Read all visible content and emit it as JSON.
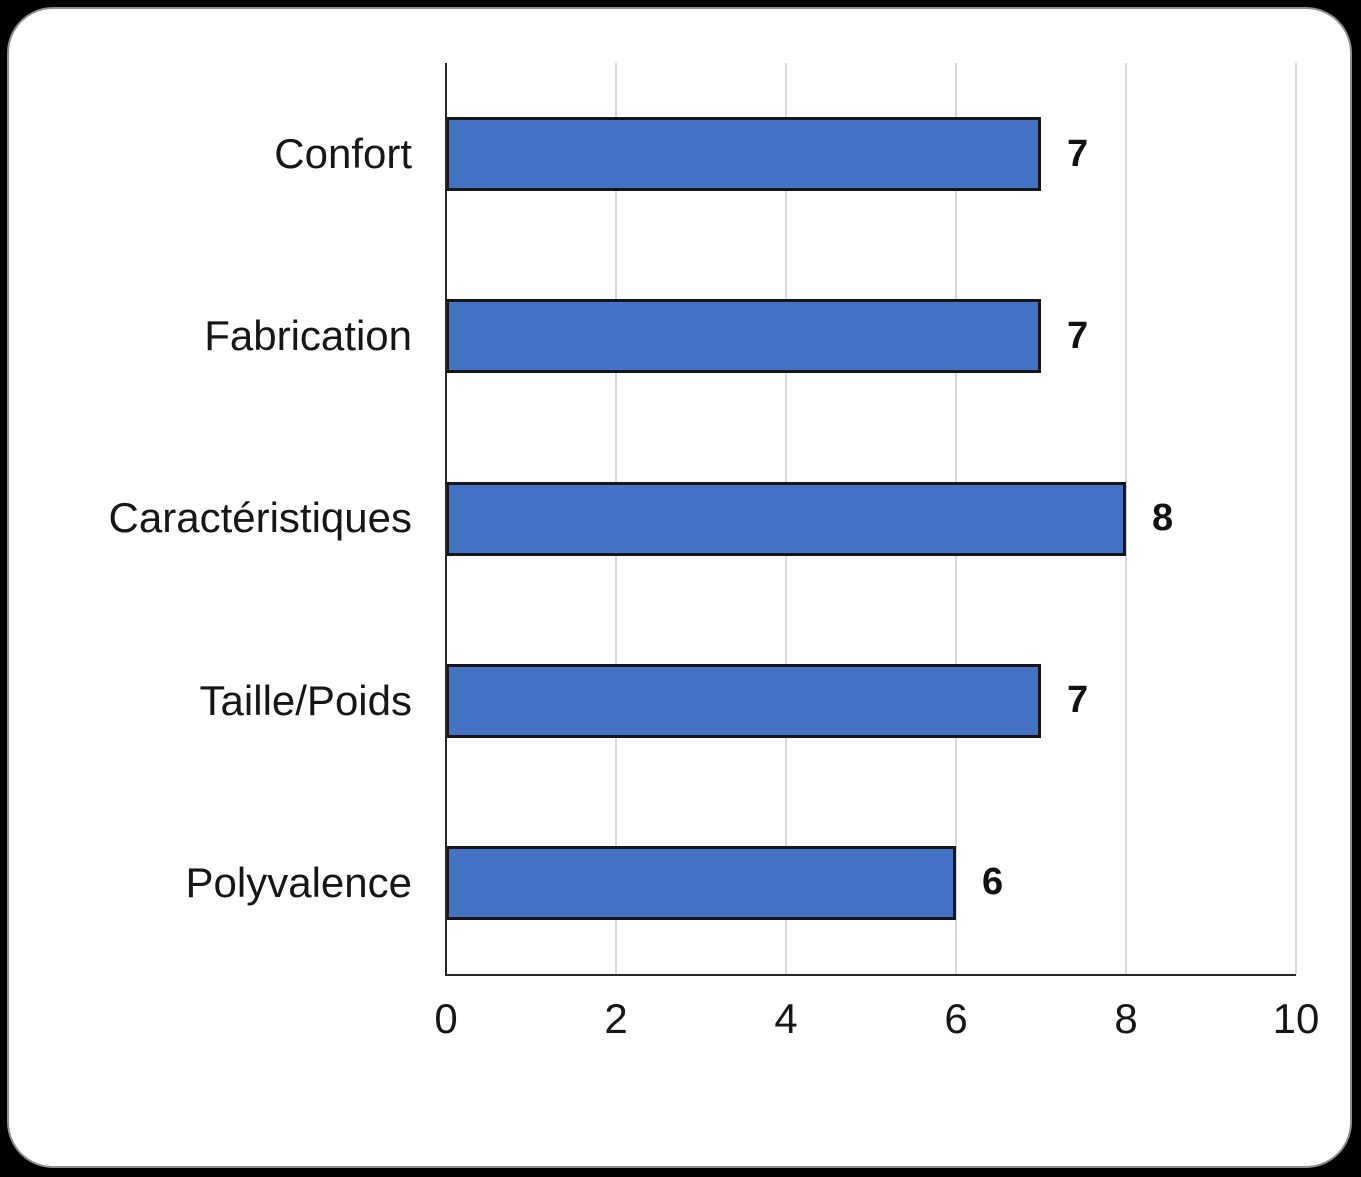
{
  "chart_data": {
    "type": "bar",
    "orientation": "horizontal",
    "title": "",
    "xlabel": "",
    "ylabel": "",
    "categories": [
      "Confort",
      "Fabrication",
      "Caractéristiques",
      "Taille/Poids",
      "Polyvalence"
    ],
    "values": [
      7,
      7,
      8,
      7,
      6
    ],
    "data_labels": [
      "7",
      "7",
      "8",
      "7",
      "6"
    ],
    "x_ticks": [
      0,
      2,
      4,
      6,
      8,
      10
    ],
    "x_tick_labels": [
      "0",
      "2",
      "4",
      "6",
      "8",
      "10"
    ],
    "xlim": [
      0,
      10
    ],
    "grid": "vertical-only",
    "legend": "none",
    "colors": {
      "bar_fill": "#4472C4",
      "bar_border": "#17171b",
      "axis_line": "#262626",
      "gridline": "#D9D9D9",
      "text": "#161616",
      "card_background": "#ffffff",
      "page_background": "#000000"
    }
  }
}
